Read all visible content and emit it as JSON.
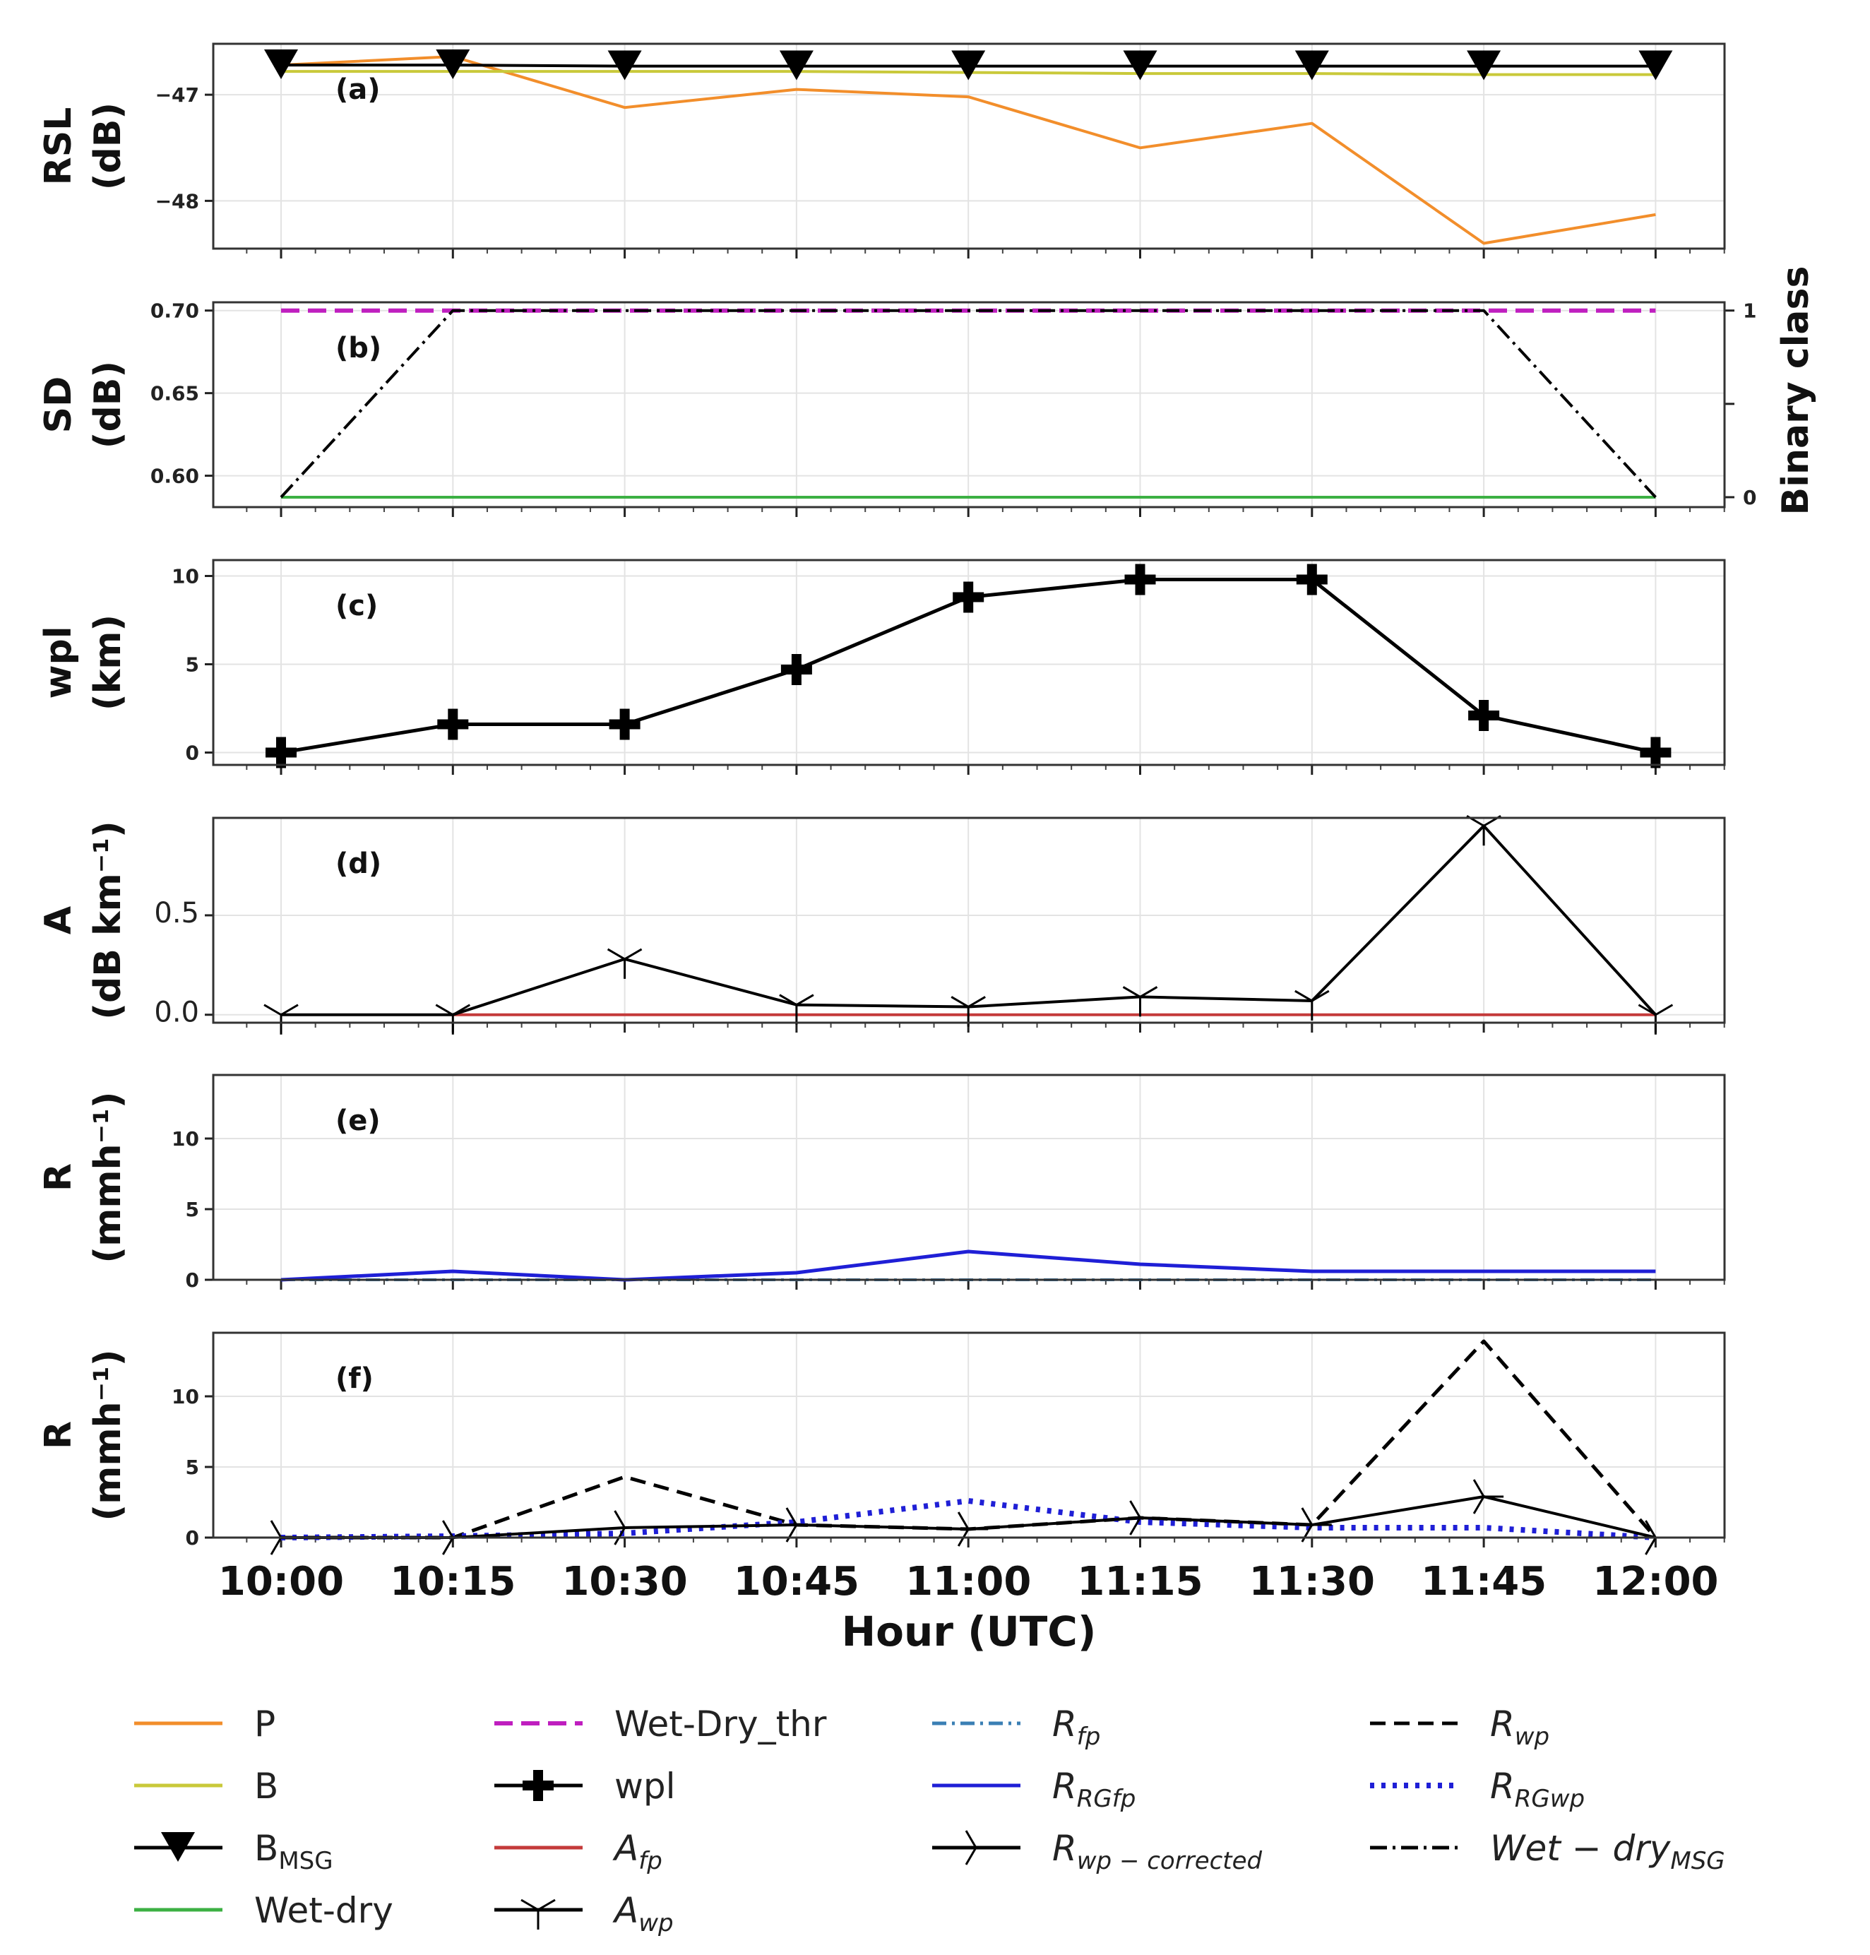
{
  "chart_data": [
    {
      "panel": "a",
      "type": "line",
      "label": "(a)",
      "ylabel_1": "RSL",
      "ylabel_2": "(dB)",
      "ylim": [
        -48.45,
        -46.52
      ],
      "yticks": [
        -47,
        -48
      ],
      "ytick_labels": [
        "−47",
        "−48"
      ],
      "x": [
        "10:00",
        "10:15",
        "10:30",
        "10:45",
        "11:00",
        "11:15",
        "11:30",
        "11:45",
        "12:00"
      ],
      "series": [
        {
          "key": "P",
          "color": "#f28e2b",
          "values": [
            -46.72,
            -46.64,
            -47.12,
            -46.95,
            -47.02,
            -47.5,
            -47.27,
            -48.4,
            -48.13
          ]
        },
        {
          "key": "B",
          "color": "#c9c93a",
          "values": [
            -46.78,
            -46.78,
            -46.78,
            -46.78,
            -46.79,
            -46.8,
            -46.8,
            -46.81,
            -46.81
          ]
        },
        {
          "key": "B_MSG",
          "color": "#000000",
          "values": [
            -46.72,
            -46.72,
            -46.73,
            -46.73,
            -46.73,
            -46.73,
            -46.73,
            -46.73,
            -46.73
          ]
        }
      ]
    },
    {
      "panel": "b",
      "type": "line",
      "label": "(b)",
      "ylabel_1": "SD",
      "ylabel_2": "(dB)",
      "ylabel_right": "Binary class",
      "ylim": [
        0.581,
        0.705
      ],
      "yticks": [
        0.7,
        0.65,
        0.6
      ],
      "ytick_labels": [
        "0.70",
        "0.65",
        "0.60"
      ],
      "yticks_right": [
        1,
        0
      ],
      "ytick_right_labels": [
        "1",
        "0"
      ],
      "x": [
        "10:00",
        "10:15",
        "10:30",
        "10:45",
        "11:00",
        "11:15",
        "11:30",
        "11:45",
        "12:00"
      ],
      "series": [
        {
          "key": "Wet-Dry_thr",
          "color": "#bf1fbf",
          "values": [
            0.7,
            0.7,
            0.7,
            0.7,
            0.7,
            0.7,
            0.7,
            0.7,
            0.7
          ]
        },
        {
          "key": "Wet-dry",
          "color": "#3cb043",
          "values": [
            0.587,
            0.587,
            0.587,
            0.587,
            0.587,
            0.587,
            0.587,
            0.587,
            0.587
          ]
        },
        {
          "key": "Wet-dry_MSG",
          "color": "#000000",
          "axis": "right",
          "values": [
            0,
            1,
            1,
            1,
            1,
            1,
            1,
            1,
            0
          ]
        }
      ]
    },
    {
      "panel": "c",
      "type": "line",
      "label": "(c)",
      "ylabel_1": "wpl",
      "ylabel_2": "(km)",
      "ylim": [
        -0.7,
        10.9
      ],
      "yticks": [
        10,
        5,
        0
      ],
      "ytick_labels": [
        "10",
        "5",
        "0"
      ],
      "x": [
        "10:00",
        "10:15",
        "10:30",
        "10:45",
        "11:00",
        "11:15",
        "11:30",
        "11:45",
        "12:00"
      ],
      "series": [
        {
          "key": "wpl",
          "color": "#000000",
          "values": [
            0,
            1.6,
            1.6,
            4.7,
            8.8,
            9.8,
            9.8,
            2.1,
            0
          ]
        }
      ]
    },
    {
      "panel": "d",
      "type": "line",
      "label": "(d)",
      "ylabel_1": "A",
      "ylabel_2": "(dB km⁻¹)",
      "ylim": [
        -0.04,
        0.99
      ],
      "yticks": [
        0.5,
        0.0
      ],
      "ytick_labels": [
        "0.5",
        "0.0"
      ],
      "x": [
        "10:00",
        "10:15",
        "10:30",
        "10:45",
        "11:00",
        "11:15",
        "11:30",
        "11:45",
        "12:00"
      ],
      "series": [
        {
          "key": "A_fp",
          "color": "#c43a3a",
          "values": [
            null,
            0,
            0,
            0,
            0,
            0,
            0,
            0,
            0
          ]
        },
        {
          "key": "A_wp",
          "color": "#000000",
          "values": [
            0,
            0,
            0.28,
            0.05,
            0.04,
            0.09,
            0.07,
            0.95,
            0
          ]
        }
      ]
    },
    {
      "panel": "e",
      "type": "line",
      "label": "(e)",
      "ylabel_1": "R",
      "ylabel_2": "(mmh⁻¹)",
      "ylim": [
        0,
        14.5
      ],
      "yticks": [
        10,
        5,
        0
      ],
      "ytick_labels": [
        "10",
        "5",
        "0"
      ],
      "x": [
        "10:00",
        "10:15",
        "10:30",
        "10:45",
        "11:00",
        "11:15",
        "11:30",
        "11:45",
        "12:00"
      ],
      "series": [
        {
          "key": "R_fp",
          "color": "#3a7fb4",
          "values": [
            0,
            0,
            0,
            0,
            0,
            0,
            0,
            0,
            0
          ]
        },
        {
          "key": "R_RGfp",
          "color": "#1f1fd6",
          "values": [
            0,
            0.6,
            0,
            0.5,
            2.0,
            1.1,
            0.6,
            0.6,
            0.6
          ]
        }
      ]
    },
    {
      "panel": "f",
      "type": "line",
      "label": "(f)",
      "ylabel_1": "R",
      "ylabel_2": "(mmh⁻¹)",
      "ylim": [
        0,
        14.5
      ],
      "yticks": [
        10,
        5,
        0
      ],
      "ytick_labels": [
        "10",
        "5",
        "0"
      ],
      "x": [
        "10:00",
        "10:15",
        "10:30",
        "10:45",
        "11:00",
        "11:15",
        "11:30",
        "11:45",
        "12:00"
      ],
      "xlabel": "Hour (UTC)",
      "series": [
        {
          "key": "R_wp",
          "color": "#000000",
          "values": [
            0,
            0,
            4.3,
            0.9,
            0.6,
            1.4,
            0.9,
            13.9,
            0
          ]
        },
        {
          "key": "R_RGwp",
          "color": "#1f1fd6",
          "values": [
            0,
            0.1,
            0.3,
            1.1,
            2.6,
            1.1,
            0.7,
            0.7,
            0
          ]
        },
        {
          "key": "R_wp_corrected",
          "color": "#000000",
          "values": [
            0,
            0,
            0.7,
            0.9,
            0.6,
            1.4,
            0.9,
            2.9,
            0
          ]
        }
      ]
    }
  ],
  "legend": {
    "entries": [
      {
        "key": "P",
        "text": "P",
        "sub": ""
      },
      {
        "key": "B",
        "text": "B",
        "sub": ""
      },
      {
        "key": "B_MSG",
        "text": "B",
        "sub": "MSG"
      },
      {
        "key": "Wet-dry",
        "text": "Wet-dry",
        "sub": ""
      },
      {
        "key": "Wet-Dry_thr",
        "text": "Wet-Dry_thr",
        "sub": ""
      },
      {
        "key": "wpl",
        "text": "wpl",
        "sub": ""
      },
      {
        "key": "A_fp",
        "text": "A",
        "sub": "fp"
      },
      {
        "key": "A_wp",
        "text": "A",
        "sub": "wp"
      },
      {
        "key": "R_fp",
        "text": "R",
        "sub": "fp"
      },
      {
        "key": "R_RGfp",
        "text": "R",
        "sub": "RGfp"
      },
      {
        "key": "R_wp_corrected",
        "text": "R",
        "sub": "wp − corrected"
      },
      {
        "key": "R_wp",
        "text": "R",
        "sub": "wp"
      },
      {
        "key": "R_RGwp",
        "text": "R",
        "sub": "RGwp"
      },
      {
        "key": "Wet-dry_MSG",
        "text": "Wet − dry",
        "sub": "MSG"
      }
    ]
  }
}
